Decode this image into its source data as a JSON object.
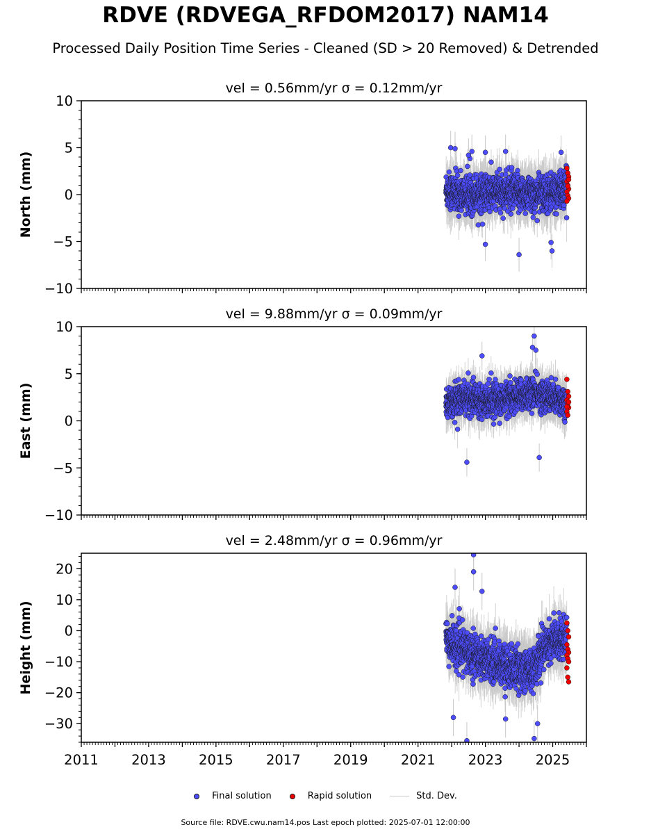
{
  "title": "RDVE (RDVEGA_RFDOM2017) NAM14",
  "subtitle": "Processed Daily Position Time Series - Cleaned (SD > 20 Removed) & Detrended",
  "footer": "Source file: RDVE.cwu.nam14.pos  Last epoch plotted: 2025-07-01 12:00:00",
  "legend": {
    "final": "Final solution",
    "rapid": "Rapid solution",
    "std": "Std. Dev."
  },
  "colors": {
    "final": "#4d4dff",
    "rapid": "#ee0000",
    "std": "#c8c8c8"
  },
  "chart_data": [
    {
      "type": "scatter",
      "title": "vel = 0.56mm/yr   σ = 0.12mm/yr",
      "ylabel": "North (mm)",
      "xlim": [
        2011,
        2026
      ],
      "ylim": [
        -10,
        10
      ],
      "yticks": [
        -10,
        -5,
        0,
        5,
        10
      ],
      "xticks": [
        2011,
        2013,
        2015,
        2017,
        2019,
        2021,
        2023,
        2025
      ],
      "final_range": [
        2021.83,
        2025.42
      ],
      "rapid_range": [
        2025.42,
        2025.5
      ],
      "center": 0.2,
      "spread": 1.8,
      "trend_segments": [
        [
          2021.83,
          0.5
        ],
        [
          2022.3,
          0.0
        ],
        [
          2023.5,
          0.3
        ],
        [
          2024.5,
          0.0
        ],
        [
          2025.42,
          0.5
        ]
      ],
      "notable_points": [
        [
          2021.97,
          5.0
        ],
        [
          2022.1,
          4.9
        ],
        [
          2022.5,
          4.2
        ],
        [
          2022.6,
          4.6
        ],
        [
          2023.0,
          4.5
        ],
        [
          2023.6,
          4.6
        ],
        [
          2023.0,
          -5.3
        ],
        [
          2024.0,
          -6.4
        ],
        [
          2024.95,
          -5.1
        ],
        [
          2024.98,
          -6.0
        ],
        [
          2025.25,
          4.5
        ]
      ],
      "rapid_points": [
        2.8,
        2.3,
        1.9,
        1.4,
        1.0,
        0.6,
        0.3,
        -0.1,
        -0.4,
        -0.7,
        0.9,
        1.6
      ]
    },
    {
      "type": "scatter",
      "title": "vel = 9.88mm/yr   σ = 0.09mm/yr",
      "ylabel": "East (mm)",
      "xlim": [
        2011,
        2026
      ],
      "ylim": [
        -10,
        10
      ],
      "yticks": [
        -10,
        -5,
        0,
        5,
        10
      ],
      "xticks": [
        2011,
        2013,
        2015,
        2017,
        2019,
        2021,
        2023,
        2025
      ],
      "final_range": [
        2021.83,
        2025.42
      ],
      "rapid_range": [
        2025.42,
        2025.5
      ],
      "center": 2.3,
      "spread": 1.5,
      "trend_segments": [
        [
          2021.83,
          2.0
        ],
        [
          2022.5,
          2.4
        ],
        [
          2023.5,
          2.2
        ],
        [
          2024.4,
          3.0
        ],
        [
          2025.42,
          2.0
        ]
      ],
      "notable_points": [
        [
          2022.45,
          -4.4
        ],
        [
          2024.6,
          -3.9
        ],
        [
          2024.4,
          7.8
        ],
        [
          2024.45,
          9.0
        ],
        [
          2022.9,
          6.9
        ],
        [
          2024.5,
          7.5
        ]
      ],
      "rapid_points": [
        4.4,
        3.1,
        2.6,
        2.2,
        1.8,
        1.4,
        1.0,
        0.6,
        2.0,
        1.5
      ]
    },
    {
      "type": "scatter",
      "title": "vel = 2.48mm/yr   σ = 0.96mm/yr",
      "ylabel": "Height (mm)",
      "xlim": [
        2011,
        2026
      ],
      "ylim": [
        -36,
        25
      ],
      "yticks": [
        -30,
        -20,
        -10,
        0,
        10,
        20
      ],
      "xticks": [
        2011,
        2013,
        2015,
        2017,
        2019,
        2021,
        2023,
        2025
      ],
      "xticklabels": [
        "2011",
        "2013",
        "2015",
        "2017",
        "2019",
        "2021",
        "2023",
        "2025"
      ],
      "final_range": [
        2021.83,
        2025.42
      ],
      "rapid_range": [
        2025.42,
        2025.5
      ],
      "center": -8.0,
      "spread": 6.0,
      "trend_segments": [
        [
          2021.83,
          -3.0
        ],
        [
          2022.3,
          -6.0
        ],
        [
          2023.0,
          -9.0
        ],
        [
          2023.8,
          -12.0
        ],
        [
          2024.4,
          -13.0
        ],
        [
          2024.8,
          -4.0
        ],
        [
          2025.42,
          -2.0
        ]
      ],
      "notable_points": [
        [
          2022.65,
          24.5
        ],
        [
          2022.65,
          19.0
        ],
        [
          2022.1,
          14.0
        ],
        [
          2022.9,
          12.7
        ],
        [
          2024.45,
          -34.8
        ],
        [
          2024.55,
          -30.0
        ],
        [
          2022.45,
          -35.5
        ],
        [
          2022.05,
          -28.0
        ],
        [
          2023.6,
          -28.5
        ]
      ],
      "rapid_points": [
        2.5,
        0.0,
        -2.0,
        -4.5,
        -6.0,
        -7.0,
        -8.0,
        -9.0,
        -10.0,
        -12.0,
        -15.0,
        -16.5
      ]
    }
  ]
}
